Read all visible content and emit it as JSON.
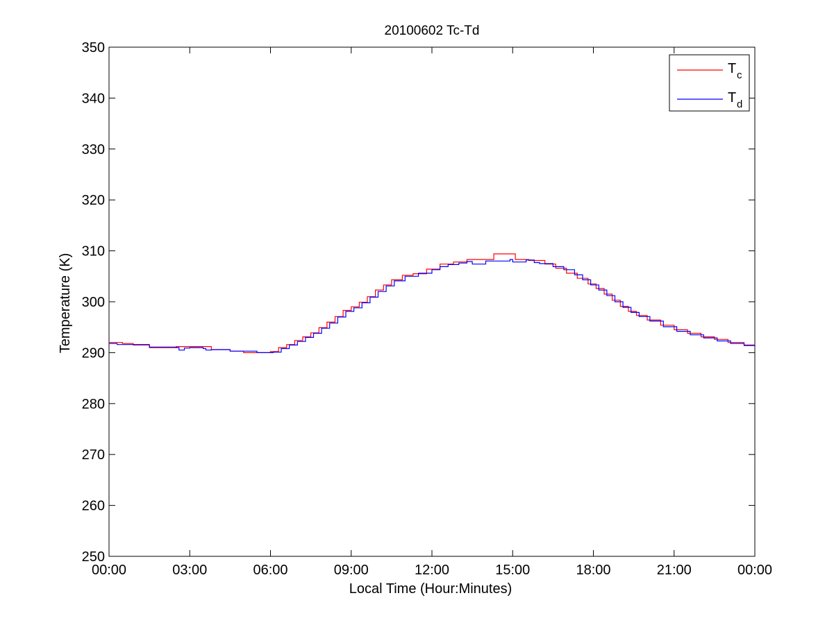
{
  "chart_data": {
    "type": "line",
    "title": "20100602 Tc-Td",
    "xlabel": "Local Time (Hour:Minutes)",
    "ylabel": "Temperature (K)",
    "xlim": [
      0,
      24
    ],
    "ylim": [
      250,
      350
    ],
    "x_ticks": [
      0,
      3,
      6,
      9,
      12,
      15,
      18,
      21,
      24
    ],
    "x_tick_labels": [
      "00:00",
      "03:00",
      "06:00",
      "09:00",
      "12:00",
      "15:00",
      "18:00",
      "21:00",
      "00:00"
    ],
    "y_ticks": [
      250,
      260,
      270,
      280,
      290,
      300,
      310,
      320,
      330,
      340,
      350
    ],
    "y_tick_labels": [
      "250",
      "260",
      "270",
      "280",
      "290",
      "300",
      "310",
      "320",
      "330",
      "340",
      "350"
    ],
    "grid": false,
    "legend_position": "top-right",
    "series": [
      {
        "name": "T",
        "name_sub": "c",
        "color": "#ff0000",
        "step": true,
        "x": [
          0.0,
          0.5,
          0.9,
          1.5,
          2.5,
          3.8,
          4.5,
          5.0,
          6.0,
          6.3,
          6.6,
          6.9,
          7.2,
          7.5,
          7.8,
          8.1,
          8.4,
          8.7,
          9.0,
          9.3,
          9.6,
          9.9,
          10.2,
          10.5,
          10.9,
          11.3,
          11.8,
          12.3,
          12.8,
          13.3,
          14.3,
          15.1,
          15.6,
          16.2,
          16.6,
          17.0,
          17.4,
          17.8,
          18.1,
          18.4,
          18.7,
          19.0,
          19.3,
          19.6,
          20.0,
          20.5,
          21.0,
          21.5,
          22.0,
          22.5,
          23.0,
          23.6,
          24.0
        ],
        "y": [
          292.0,
          291.8,
          291.5,
          291.0,
          291.2,
          290.6,
          290.3,
          290.0,
          290.2,
          291.0,
          291.6,
          292.4,
          293.1,
          293.9,
          294.9,
          296.0,
          297.1,
          298.3,
          299.0,
          299.9,
          301.0,
          302.3,
          303.3,
          304.3,
          305.2,
          305.5,
          306.4,
          307.4,
          307.8,
          308.3,
          309.4,
          308.3,
          308.1,
          307.4,
          306.6,
          305.6,
          304.6,
          303.5,
          302.6,
          301.5,
          300.3,
          299.1,
          298.1,
          297.3,
          296.4,
          295.4,
          294.5,
          293.8,
          293.1,
          292.6,
          292.0,
          291.5,
          291.3
        ]
      },
      {
        "name": "T",
        "name_sub": "d",
        "color": "#0000ff",
        "step": true,
        "x": [
          0.0,
          0.3,
          1.5,
          2.5,
          2.6,
          2.8,
          3.0,
          3.5,
          3.6,
          3.8,
          4.5,
          5.5,
          6.1,
          6.4,
          6.7,
          7.0,
          7.3,
          7.6,
          7.9,
          8.2,
          8.5,
          8.8,
          9.1,
          9.4,
          9.7,
          10.0,
          10.3,
          10.6,
          11.0,
          11.5,
          12.0,
          12.3,
          12.6,
          13.0,
          13.3,
          13.5,
          14.0,
          14.9,
          15.0,
          15.5,
          15.8,
          16.0,
          16.5,
          16.9,
          17.3,
          17.6,
          17.9,
          18.2,
          18.5,
          18.8,
          19.1,
          19.4,
          19.7,
          20.1,
          20.6,
          21.1,
          21.6,
          22.1,
          22.6,
          23.1,
          23.6,
          24.0
        ],
        "y": [
          291.8,
          291.6,
          291.1,
          291.0,
          290.5,
          290.9,
          291.0,
          290.8,
          290.5,
          290.6,
          290.3,
          290.0,
          290.1,
          290.8,
          291.5,
          292.2,
          293.0,
          293.8,
          294.8,
          295.8,
          297.0,
          298.1,
          298.8,
          299.8,
          300.9,
          302.0,
          303.1,
          304.1,
          305.0,
          305.6,
          306.3,
          306.9,
          307.3,
          307.6,
          307.9,
          307.4,
          308.0,
          308.3,
          307.8,
          308.2,
          307.7,
          307.5,
          306.9,
          306.3,
          305.3,
          304.3,
          303.3,
          302.3,
          301.2,
          300.0,
          298.9,
          297.9,
          297.1,
          296.2,
          295.1,
          294.2,
          293.5,
          292.9,
          292.3,
          291.8,
          291.4,
          291.2
        ]
      }
    ]
  }
}
